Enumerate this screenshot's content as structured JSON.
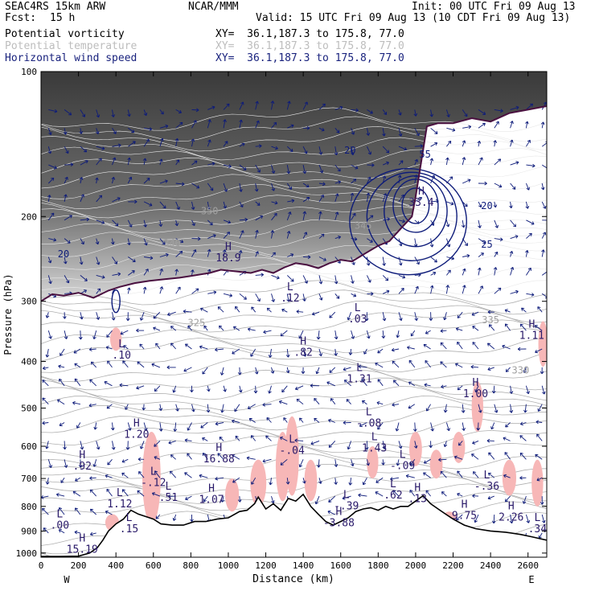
{
  "header": {
    "model": "SEAC4RS 15km ARW",
    "center": "NCAR/MMM",
    "init": "Init: 00 UTC Fri 09 Aug 13",
    "fcst_label": "Fcst:",
    "fcst_value": "15 h",
    "valid": "Valid: 15 UTC Fri 09 Aug 13 (10 CDT Fri 09 Aug 13)"
  },
  "fields": [
    {
      "name": "Potential vorticity",
      "xy": "XY=  36.1,187.3 to 175.8, 77.0",
      "color": "#000000"
    },
    {
      "name": "Potential temperature",
      "xy": "XY=  36.1,187.3 to 175.8, 77.0",
      "color": "#bdbdbd"
    },
    {
      "name": "Horizontal wind speed",
      "xy": "XY=  36.1,187.3 to 175.8, 77.0",
      "color": "#1a237e"
    }
  ],
  "colors": {
    "pv_fill": "#404040",
    "pv_contour": "#4a1040",
    "theta": "#b0b0b0",
    "wind": "#0d1b7a",
    "positive_region": "#f7b7b7",
    "terrain": "#000000"
  },
  "chart_data": {
    "type": "cross-section",
    "xlabel": "Distance (km)",
    "ylabel": "Pressure (hPa)",
    "xlim": [
      0,
      2700
    ],
    "ylim": [
      1020,
      100
    ],
    "y_scale": "log",
    "x_ticks": [
      0,
      200,
      400,
      600,
      800,
      1000,
      1200,
      1400,
      1600,
      1800,
      2000,
      2200,
      2400,
      2600
    ],
    "y_ticks": [
      100,
      200,
      300,
      400,
      500,
      600,
      700,
      800,
      900,
      1000
    ],
    "x_end_labels": {
      "left": "W",
      "right": "E"
    },
    "terrain": [
      [
        0,
        1016
      ],
      [
        100,
        1016
      ],
      [
        200,
        1015
      ],
      [
        260,
        1000
      ],
      [
        300,
        975
      ],
      [
        330,
        940
      ],
      [
        360,
        900
      ],
      [
        400,
        870
      ],
      [
        440,
        850
      ],
      [
        480,
        815
      ],
      [
        520,
        830
      ],
      [
        560,
        840
      ],
      [
        600,
        850
      ],
      [
        640,
        870
      ],
      [
        700,
        875
      ],
      [
        760,
        875
      ],
      [
        820,
        860
      ],
      [
        880,
        860
      ],
      [
        940,
        850
      ],
      [
        1000,
        845
      ],
      [
        1060,
        820
      ],
      [
        1100,
        815
      ],
      [
        1140,
        790
      ],
      [
        1160,
        765
      ],
      [
        1200,
        810
      ],
      [
        1240,
        790
      ],
      [
        1280,
        815
      ],
      [
        1320,
        770
      ],
      [
        1360,
        780
      ],
      [
        1400,
        755
      ],
      [
        1440,
        800
      ],
      [
        1480,
        830
      ],
      [
        1520,
        860
      ],
      [
        1560,
        875
      ],
      [
        1600,
        860
      ],
      [
        1640,
        845
      ],
      [
        1680,
        820
      ],
      [
        1720,
        810
      ],
      [
        1760,
        805
      ],
      [
        1800,
        815
      ],
      [
        1840,
        800
      ],
      [
        1880,
        810
      ],
      [
        1920,
        800
      ],
      [
        1960,
        800
      ],
      [
        2000,
        780
      ],
      [
        2040,
        760
      ],
      [
        2080,
        790
      ],
      [
        2120,
        810
      ],
      [
        2160,
        830
      ],
      [
        2200,
        850
      ],
      [
        2260,
        875
      ],
      [
        2320,
        890
      ],
      [
        2400,
        900
      ],
      [
        2480,
        905
      ],
      [
        2560,
        915
      ],
      [
        2620,
        925
      ],
      [
        2700,
        940
      ]
    ],
    "tropopause": [
      [
        0,
        300
      ],
      [
        60,
        290
      ],
      [
        120,
        292
      ],
      [
        200,
        288
      ],
      [
        280,
        295
      ],
      [
        360,
        285
      ],
      [
        420,
        280
      ],
      [
        500,
        275
      ],
      [
        580,
        272
      ],
      [
        660,
        270
      ],
      [
        740,
        268
      ],
      [
        820,
        265
      ],
      [
        900,
        262
      ],
      [
        960,
        258
      ],
      [
        1040,
        260
      ],
      [
        1120,
        262
      ],
      [
        1180,
        258
      ],
      [
        1240,
        262
      ],
      [
        1300,
        255
      ],
      [
        1360,
        250
      ],
      [
        1420,
        252
      ],
      [
        1480,
        256
      ],
      [
        1540,
        250
      ],
      [
        1600,
        246
      ],
      [
        1660,
        248
      ],
      [
        1720,
        240
      ],
      [
        1800,
        230
      ],
      [
        1860,
        225
      ],
      [
        1920,
        212
      ],
      [
        1980,
        200
      ],
      [
        2000,
        182
      ],
      [
        2060,
        130
      ],
      [
        2120,
        128
      ],
      [
        2200,
        128
      ],
      [
        2300,
        125
      ],
      [
        2400,
        127
      ],
      [
        2500,
        122
      ],
      [
        2600,
        120
      ],
      [
        2700,
        118
      ]
    ],
    "theta_contours": [
      {
        "label": "325",
        "x": 830,
        "p": 338
      },
      {
        "label": "330",
        "x": 2560,
        "p": 424
      },
      {
        "label": "335",
        "x": 2400,
        "p": 333
      },
      {
        "label": "340",
        "x": 700,
        "p": 231
      },
      {
        "label": "345",
        "x": 1720,
        "p": 212
      },
      {
        "label": "350",
        "x": 900,
        "p": 198
      }
    ],
    "wind_speed_labels": [
      {
        "label": "20",
        "x": 1650,
        "p": 148
      },
      {
        "label": "20",
        "x": 2380,
        "p": 193
      },
      {
        "label": "25",
        "x": 2380,
        "p": 232
      },
      {
        "label": "55",
        "x": 2050,
        "p": 151
      },
      {
        "label": "20",
        "x": 120,
        "p": 243
      }
    ],
    "extrema": [
      {
        "kind": "H",
        "value": "18.9",
        "x": 1000,
        "p": 245
      },
      {
        "kind": "H",
        "value": "33.4",
        "x": 2030,
        "p": 188
      },
      {
        "kind": "L",
        "value": ".12",
        "x": 1330,
        "p": 297
      },
      {
        "kind": "L",
        "value": ".03",
        "x": 1690,
        "p": 328
      },
      {
        "kind": "H",
        "value": ".82",
        "x": 1400,
        "p": 385
      },
      {
        "kind": "L",
        "value": ".10",
        "x": 430,
        "p": 390
      },
      {
        "kind": "L",
        "value": "1.31",
        "x": 1700,
        "p": 437
      },
      {
        "kind": "H",
        "value": "1.11",
        "x": 2620,
        "p": 355
      },
      {
        "kind": "H",
        "value": "1.00",
        "x": 2320,
        "p": 469
      },
      {
        "kind": "L",
        "value": "-.08",
        "x": 1750,
        "p": 540
      },
      {
        "kind": "H",
        "value": "1.20",
        "x": 510,
        "p": 570
      },
      {
        "kind": "L",
        "value": "1.43",
        "x": 1780,
        "p": 608
      },
      {
        "kind": "L",
        "value": "-.04",
        "x": 1340,
        "p": 615
      },
      {
        "kind": "H",
        "value": "16.88",
        "x": 950,
        "p": 640
      },
      {
        "kind": "L",
        "value": "-.09",
        "x": 1930,
        "p": 662
      },
      {
        "kind": "H",
        "value": ".92",
        "x": 220,
        "p": 663
      },
      {
        "kind": "L",
        "value": "-.12",
        "x": 600,
        "p": 718
      },
      {
        "kind": "L",
        "value": "-.36",
        "x": 2380,
        "p": 730
      },
      {
        "kind": "L",
        "value": ".51",
        "x": 680,
        "p": 770
      },
      {
        "kind": "H",
        "value": "1.07",
        "x": 910,
        "p": 778
      },
      {
        "kind": "L",
        "value": ".62",
        "x": 1880,
        "p": 762
      },
      {
        "kind": "H",
        "value": ".13",
        "x": 2010,
        "p": 775
      },
      {
        "kind": "L",
        "value": "-.39",
        "x": 1630,
        "p": 802
      },
      {
        "kind": "L",
        "value": "1.12",
        "x": 420,
        "p": 795
      },
      {
        "kind": "H",
        "value": "9.75",
        "x": 2260,
        "p": 840
      },
      {
        "kind": "H",
        "value": "2.26",
        "x": 2510,
        "p": 846
      },
      {
        "kind": "H",
        "value": "-3.88",
        "x": 1590,
        "p": 870
      },
      {
        "kind": "L",
        "value": ".15",
        "x": 470,
        "p": 895
      },
      {
        "kind": "L",
        "value": ".00",
        "x": 100,
        "p": 880
      },
      {
        "kind": "L",
        "value": ".34",
        "x": 2650,
        "p": 895
      },
      {
        "kind": "H",
        "value": "15.19",
        "x": 220,
        "p": 988
      }
    ]
  }
}
